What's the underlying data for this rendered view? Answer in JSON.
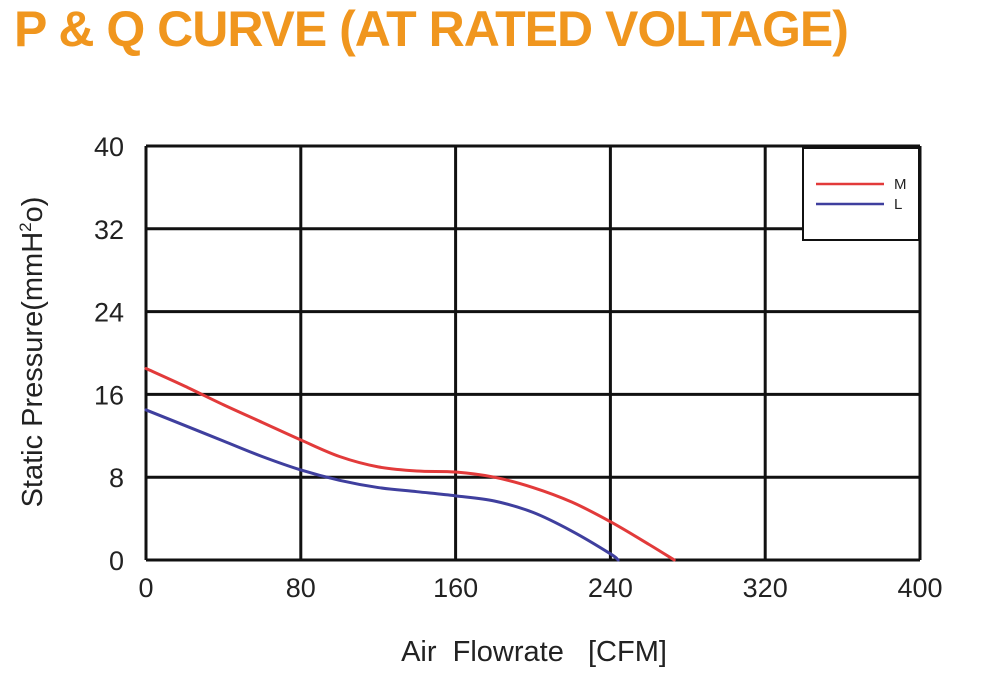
{
  "header": {
    "title": "P & Q CURVE (AT RATED VOLTAGE)"
  },
  "colors": {
    "title": "#f0961e",
    "series_m": "#e23a3a",
    "series_l": "#3f3f9e",
    "grid": "#111111"
  },
  "chart_data": {
    "type": "line",
    "title": "P & Q CURVE (AT RATED VOLTAGE)",
    "xlabel": "Air  Flowrate   [CFM]",
    "ylabel": "Static Pressure(mmH²o)",
    "xlim": [
      0,
      400
    ],
    "ylim": [
      0,
      40
    ],
    "x_ticks": [
      "0",
      "80",
      "160",
      "240",
      "320",
      "400"
    ],
    "y_ticks": [
      "0",
      "8",
      "16",
      "24",
      "32",
      "40"
    ],
    "grid": true,
    "legend_position": "top-right",
    "series": [
      {
        "name": "M",
        "color": "#e23a3a",
        "points": [
          [
            0,
            18.5
          ],
          [
            20,
            16.8
          ],
          [
            40,
            15.0
          ],
          [
            60,
            13.3
          ],
          [
            80,
            11.6
          ],
          [
            100,
            10.0
          ],
          [
            120,
            9.0
          ],
          [
            140,
            8.6
          ],
          [
            160,
            8.5
          ],
          [
            180,
            8.0
          ],
          [
            200,
            7.0
          ],
          [
            220,
            5.6
          ],
          [
            240,
            3.7
          ],
          [
            260,
            1.5
          ],
          [
            273,
            0
          ]
        ]
      },
      {
        "name": "L",
        "color": "#3f3f9e",
        "points": [
          [
            0,
            14.5
          ],
          [
            20,
            13.0
          ],
          [
            40,
            11.5
          ],
          [
            60,
            10.0
          ],
          [
            80,
            8.7
          ],
          [
            100,
            7.7
          ],
          [
            120,
            7.0
          ],
          [
            140,
            6.6
          ],
          [
            160,
            6.2
          ],
          [
            180,
            5.7
          ],
          [
            200,
            4.6
          ],
          [
            220,
            2.8
          ],
          [
            240,
            0.6
          ],
          [
            244,
            0
          ]
        ]
      }
    ]
  }
}
